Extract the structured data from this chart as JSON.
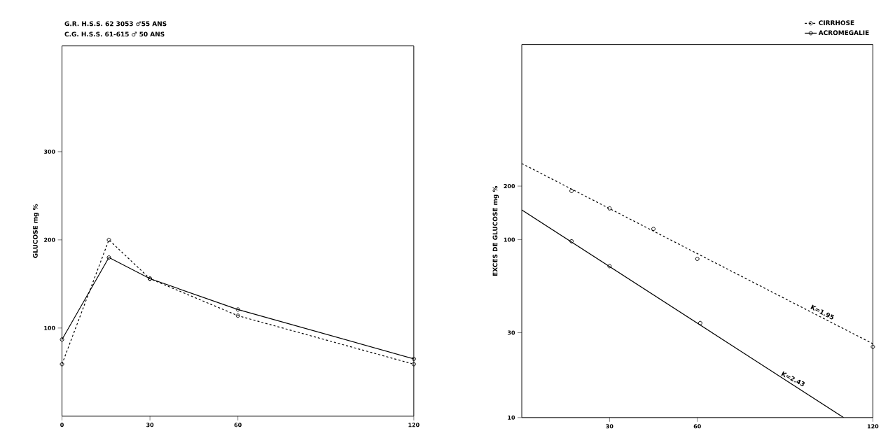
{
  "chart_data": [
    {
      "type": "line",
      "title": "G.R. H.S.S. 62 3053 ♂55 ANS",
      "subtitle": "C.G. H.S.S. 61-615 ♂ 50 ANS",
      "ylabel": "GLUCOSE  mg %",
      "xlim": [
        0,
        120
      ],
      "ylim": [
        0,
        420
      ],
      "xticks": [
        0,
        30,
        60,
        120
      ],
      "yticks": [
        100,
        200,
        300
      ],
      "marker": "circle",
      "series": [
        {
          "color": "#000000",
          "line_style": "dashed",
          "x": [
            0,
            16,
            30,
            60,
            120
          ],
          "values": [
            59,
            200,
            156,
            114,
            59
          ]
        },
        {
          "color": "#000000",
          "line_style": "solid",
          "x": [
            0,
            16,
            30,
            60,
            120
          ],
          "values": [
            87,
            180,
            156,
            121,
            65
          ]
        }
      ]
    },
    {
      "type": "line",
      "ylabel": "EXCES DE GLUCOSE  mg %",
      "log": "y",
      "xlim": [
        0,
        120
      ],
      "ylim": [
        10,
        1250
      ],
      "xticks": [
        30,
        60,
        120
      ],
      "yticks": [
        10,
        30,
        100,
        200
      ],
      "legend": "top right",
      "annotations": [
        {
          "text": "K=1.95",
          "x": 102,
          "y": 37
        },
        {
          "text": "K=2.43",
          "x": 92,
          "y": 15.6
        }
      ],
      "series": [
        {
          "name": "CIRRHOSE",
          "type": "scatter",
          "marker": "circle",
          "line_style": "dashed",
          "color": "#000000",
          "x": [
            17,
            30,
            45,
            60,
            120
          ],
          "values": [
            188,
            150,
            115,
            78,
            25
          ]
        },
        {
          "name": "ACROMEGALIE",
          "type": "scatter",
          "marker": "circle",
          "line_style": "solid",
          "color": "#000000",
          "x": [
            17,
            30,
            61
          ],
          "values": [
            98,
            71,
            34
          ]
        },
        {
          "type": "line",
          "line_style": "dashed",
          "color": "#000000",
          "x": [
            0,
            120
          ],
          "values": [
            268,
            26
          ]
        },
        {
          "type": "line",
          "line_style": "solid",
          "color": "#000000",
          "x": [
            0,
            110
          ],
          "values": [
            147,
            10
          ]
        }
      ]
    }
  ]
}
